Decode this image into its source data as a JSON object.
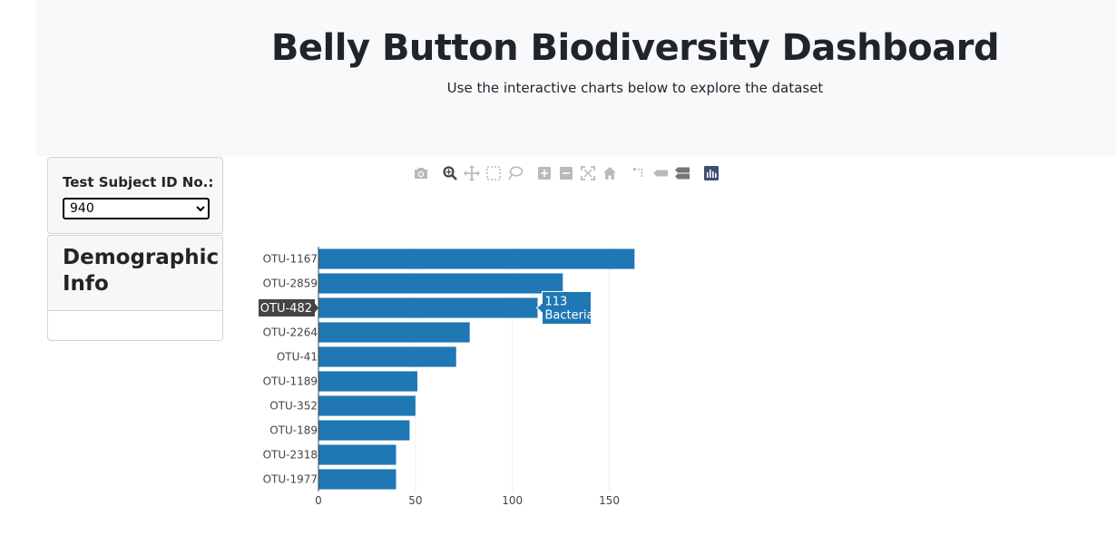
{
  "header": {
    "title": "Belly Button Biodiversity Dashboard",
    "subtitle": "Use the interactive charts below to explore the dataset"
  },
  "selector": {
    "label": "Test Subject ID No.:",
    "selected_value": "940"
  },
  "demographic": {
    "title": "Demographic Info"
  },
  "modebar": {
    "buttons": [
      {
        "name": "camera-icon",
        "title": "Download plot as a png"
      },
      {
        "name": "zoom-icon",
        "title": "Zoom"
      },
      {
        "name": "pan-icon",
        "title": "Pan"
      },
      {
        "name": "box-select-icon",
        "title": "Box Select"
      },
      {
        "name": "lasso-select-icon",
        "title": "Lasso Select"
      },
      {
        "name": "zoom-in-icon",
        "title": "Zoom in"
      },
      {
        "name": "zoom-out-icon",
        "title": "Zoom out"
      },
      {
        "name": "autoscale-icon",
        "title": "Autoscale"
      },
      {
        "name": "home-icon",
        "title": "Reset axes"
      },
      {
        "name": "spike-lines-icon",
        "title": "Toggle Spike Lines"
      },
      {
        "name": "hover-closest-icon",
        "title": "Show closest data on hover"
      },
      {
        "name": "hover-compare-icon",
        "title": "Compare data on hover"
      },
      {
        "name": "plotly-logo-icon",
        "title": "Produced with Plotly"
      }
    ]
  },
  "chart_data": {
    "type": "bar",
    "orientation": "horizontal",
    "categories": [
      "OTU-1167",
      "OTU-2859",
      "OTU-482",
      "OTU-2264",
      "OTU-41",
      "OTU-1189",
      "OTU-352",
      "OTU-189",
      "OTU-2318",
      "OTU-1977"
    ],
    "values": [
      163,
      126,
      113,
      78,
      71,
      51,
      50,
      47,
      40,
      40
    ],
    "xlim": [
      0,
      175
    ],
    "xticks": [
      0,
      50,
      100,
      150
    ],
    "bar_color": "#1f77b4",
    "grid": true,
    "hover": {
      "category": "OTU-482",
      "value_text": "113",
      "label_text": "Bacteria"
    }
  },
  "colors": {
    "jumbotron_bg": "#f8f9fa",
    "bar": "#1f77b4",
    "modebar_icon": "#b9b9b9",
    "modebar_active": "#444444",
    "plotly_logo": "#3f4f75"
  }
}
